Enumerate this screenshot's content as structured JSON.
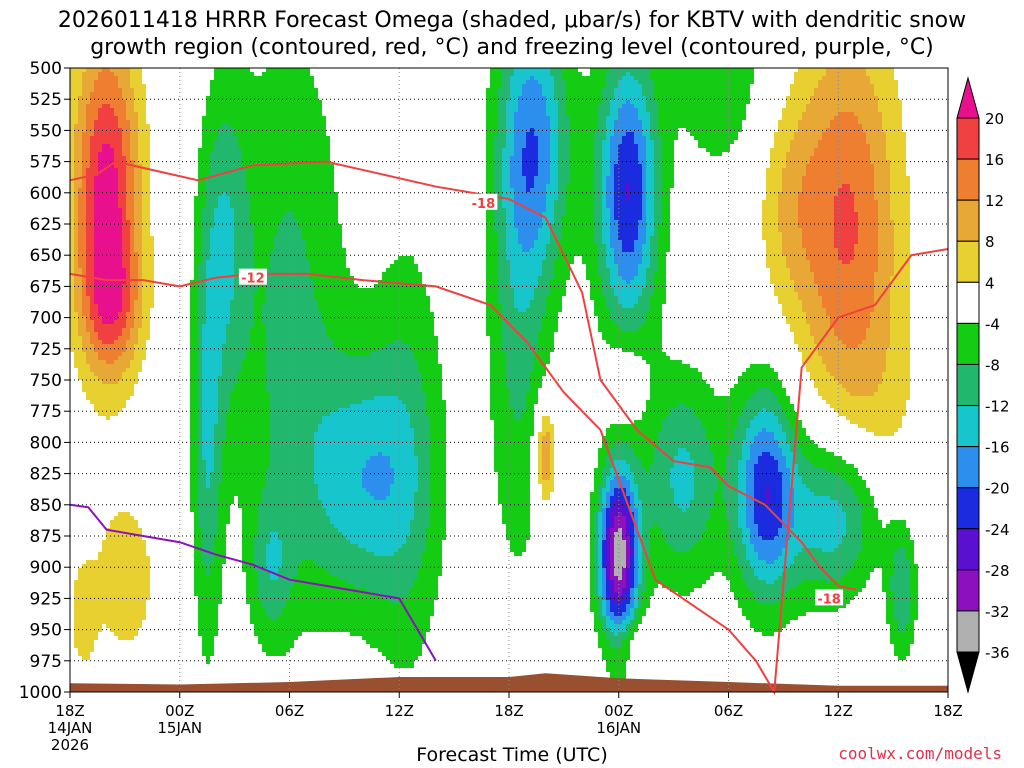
{
  "colors": {
    "scale": [
      "#000000",
      "#b0b0b0",
      "#8e0fc0",
      "#5a10d0",
      "#1a2be0",
      "#2c8fee",
      "#16c6cc",
      "#21b86e",
      "#14cc14",
      "#ffffff",
      "#e8d030",
      "#e8a835",
      "#ef7f30",
      "#f04040",
      "#e8108c"
    ]
  },
  "chart_data": {
    "type": "heatmap",
    "title_lines": [
      "2026011418 HRRR Forecast Omega (shaded, μbar/s) for KBTV with dendritic snow",
      "growth region (contoured, red, °C) and freezing level (contoured, purple, °C)"
    ],
    "xlabel": "Forecast Time (UTC)",
    "ylabel": "",
    "credit": "coolwx.com/models",
    "x_range_hours": [
      0,
      48
    ],
    "x_ticks": [
      {
        "hour": 0,
        "lines": [
          "18Z",
          "14JAN",
          "2026"
        ]
      },
      {
        "hour": 6,
        "lines": [
          "00Z",
          "15JAN"
        ]
      },
      {
        "hour": 12,
        "lines": [
          "06Z"
        ]
      },
      {
        "hour": 18,
        "lines": [
          "12Z"
        ]
      },
      {
        "hour": 24,
        "lines": [
          "18Z"
        ]
      },
      {
        "hour": 30,
        "lines": [
          "00Z",
          "16JAN"
        ]
      },
      {
        "hour": 36,
        "lines": [
          "06Z"
        ]
      },
      {
        "hour": 42,
        "lines": [
          "12Z"
        ]
      },
      {
        "hour": 48,
        "lines": [
          "18Z"
        ]
      }
    ],
    "y_ticks": [
      500,
      525,
      550,
      575,
      600,
      625,
      650,
      675,
      700,
      725,
      750,
      775,
      800,
      825,
      850,
      875,
      900,
      925,
      950,
      975,
      1000
    ],
    "y_range_hpa": [
      500,
      1000
    ],
    "colorbar_labels": [
      "20",
      "16",
      "12",
      "8",
      "4",
      "-4",
      "-8",
      "-12",
      "-16",
      "-20",
      "-24",
      "-28",
      "-32",
      "-36"
    ],
    "colorbar_levels": [
      -40,
      -36,
      -32,
      -28,
      -24,
      -20,
      -16,
      -12,
      -8,
      -4,
      4,
      8,
      12,
      16,
      20,
      24
    ],
    "omega_features": [
      {
        "hour": 2.0,
        "p": 600,
        "sx": 1.3,
        "sy": 90,
        "v": 22
      },
      {
        "hour": 2.3,
        "p": 690,
        "sx": 1.2,
        "sy": 40,
        "v": 10
      },
      {
        "hour": 0.7,
        "p": 940,
        "sx": 0.5,
        "sy": 30,
        "v": 6
      },
      {
        "hour": 3.0,
        "p": 910,
        "sx": 1.5,
        "sy": 55,
        "v": 6
      },
      {
        "hour": 42.5,
        "p": 620,
        "sx": 2.0,
        "sy": 110,
        "v": 16
      },
      {
        "hour": 39.3,
        "p": 610,
        "sx": 1.3,
        "sy": 60,
        "v": 6
      },
      {
        "hour": 44.0,
        "p": 820,
        "sx": 2.0,
        "sy": 90,
        "v": 5
      },
      {
        "hour": 26.0,
        "p": 810,
        "sx": 0.4,
        "sy": 30,
        "v": 14
      },
      {
        "hour": 30.4,
        "p": 750,
        "sx": 0.8,
        "sy": 25,
        "v": 5
      },
      {
        "hour": 30.9,
        "p": 960,
        "sx": 1.1,
        "sy": 14,
        "v": 5
      },
      {
        "hour": 8.5,
        "p": 640,
        "sx": 0.9,
        "sy": 95,
        "v": -10
      },
      {
        "hour": 12.0,
        "p": 700,
        "sx": 2.2,
        "sy": 170,
        "v": -9
      },
      {
        "hour": 16.0,
        "p": 830,
        "sx": 2.2,
        "sy": 70,
        "v": -13
      },
      {
        "hour": 18.5,
        "p": 810,
        "sx": 1.5,
        "sy": 140,
        "v": -7
      },
      {
        "hour": 24.5,
        "p": 700,
        "sx": 1.2,
        "sy": 150,
        "v": -9
      },
      {
        "hour": 25.5,
        "p": 560,
        "sx": 1.4,
        "sy": 80,
        "v": -16
      },
      {
        "hour": 30.5,
        "p": 600,
        "sx": 1.2,
        "sy": 80,
        "v": -24
      },
      {
        "hour": 30.0,
        "p": 890,
        "sx": 0.8,
        "sy": 50,
        "v": -34
      },
      {
        "hour": 33.5,
        "p": 830,
        "sx": 1.5,
        "sy": 60,
        "v": -13
      },
      {
        "hour": 38.0,
        "p": 840,
        "sx": 1.2,
        "sy": 60,
        "v": -22
      },
      {
        "hour": 42.0,
        "p": 860,
        "sx": 2.0,
        "sy": 50,
        "v": -17
      },
      {
        "hour": 35.5,
        "p": 500,
        "sx": 1.8,
        "sy": 60,
        "v": -8
      },
      {
        "hour": 7.5,
        "p": 800,
        "sx": 0.6,
        "sy": 120,
        "v": -11
      },
      {
        "hour": 11.0,
        "p": 900,
        "sx": 0.8,
        "sy": 40,
        "v": -8
      },
      {
        "hour": 45.5,
        "p": 920,
        "sx": 0.6,
        "sy": 40,
        "v": -12
      }
    ],
    "series": [
      {
        "name": "-18",
        "color": "#f04040",
        "hours": [
          0,
          1.5,
          2.5,
          4,
          7,
          10,
          14,
          17,
          20,
          24,
          26,
          28,
          29,
          31,
          33,
          35,
          36,
          38,
          40,
          41,
          42,
          43
        ],
        "p": [
          590,
          585,
          575,
          580,
          590,
          578,
          575,
          585,
          595,
          605,
          620,
          680,
          750,
          790,
          815,
          820,
          835,
          850,
          880,
          900,
          915,
          918
        ]
      },
      {
        "name": "-12",
        "color": "#f04040",
        "hours": [
          0,
          2,
          4,
          6,
          8,
          10,
          13,
          16,
          20,
          23,
          25,
          27,
          29,
          30,
          31,
          32,
          34,
          36,
          37.5,
          38.5,
          40,
          42,
          44,
          46,
          48
        ],
        "p": [
          665,
          670,
          670,
          675,
          668,
          665,
          665,
          670,
          675,
          690,
          720,
          760,
          790,
          830,
          870,
          910,
          930,
          950,
          975,
          1000,
          740,
          700,
          690,
          650,
          645
        ]
      },
      {
        "name": "freezing level",
        "color": "#8e0fc0",
        "hours": [
          0,
          1,
          2,
          4,
          6,
          8,
          10,
          12,
          14,
          16,
          18,
          20
        ],
        "p": [
          850,
          852,
          870,
          875,
          880,
          890,
          898,
          910,
          915,
          920,
          925,
          975
        ]
      }
    ],
    "terrain": {
      "color": "#985030",
      "hours": [
        0,
        6,
        12,
        18,
        24,
        26,
        30,
        36,
        42,
        48
      ],
      "p": [
        993,
        994,
        992,
        988,
        988,
        985,
        989,
        992,
        995,
        995
      ]
    }
  }
}
